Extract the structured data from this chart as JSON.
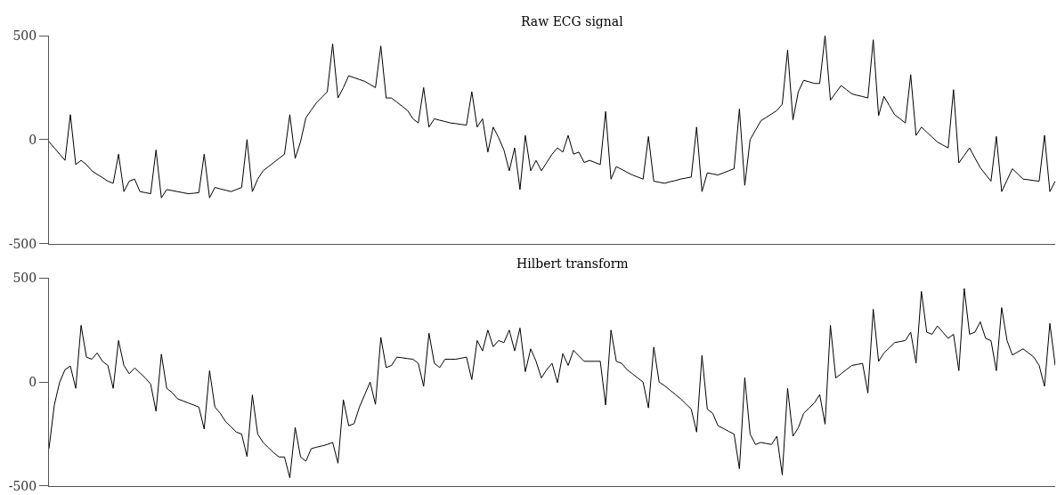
{
  "chart_data": [
    {
      "type": "line",
      "title": "Raw ECG signal",
      "categories": [
        null,
        null,
        null,
        null,
        null,
        null,
        null,
        null,
        null,
        null,
        null,
        null,
        null,
        null,
        null,
        null,
        null,
        null,
        null,
        null,
        null,
        null,
        null,
        null,
        null,
        null,
        null,
        null,
        null,
        null,
        null,
        null,
        null,
        null,
        null,
        null,
        null,
        null,
        null,
        null,
        null,
        null,
        null,
        null,
        null,
        null,
        null,
        null,
        null,
        null,
        null,
        null,
        null,
        null,
        null,
        null,
        null,
        null,
        null,
        null,
        null,
        null,
        null,
        null,
        null,
        null,
        null,
        null,
        null,
        null,
        null,
        null,
        null,
        null,
        null,
        null,
        null,
        null,
        null,
        null,
        null,
        null,
        null,
        null,
        null,
        null,
        null,
        null,
        null,
        null,
        null,
        null,
        null,
        null,
        null,
        null,
        null,
        null,
        null,
        null,
        null,
        null,
        null,
        null,
        null,
        null,
        null,
        null,
        null,
        null,
        null,
        null,
        null,
        null,
        null,
        null,
        null,
        null,
        null,
        null,
        null,
        null,
        null,
        null,
        null,
        null,
        null,
        null,
        null,
        null,
        null,
        null,
        null,
        null,
        null,
        null,
        null,
        null,
        null,
        null,
        null,
        null,
        null,
        null,
        null,
        null,
        null,
        null,
        null,
        null,
        null,
        null,
        null,
        null,
        null,
        null,
        null,
        null,
        null,
        null,
        null,
        null,
        null,
        null,
        null,
        null,
        null,
        null,
        null,
        null,
        null,
        null,
        null,
        null,
        null,
        null,
        null,
        null,
        null,
        null,
        null,
        null,
        null,
        null,
        null,
        null,
        null,
        null,
        null
      ],
      "ylim": [
        -500,
        500
      ],
      "yticks": [
        -500,
        0,
        500
      ],
      "tick_labels": "y",
      "series": [
        {
          "color": "#000000",
          "values": [
            -10,
            -40,
            -70,
            -100,
            120,
            -120,
            -100,
            -120,
            -150,
            -167,
            -183,
            -200,
            -210,
            -70,
            -250,
            -200,
            -190,
            -250,
            -255,
            -260,
            -50,
            -280,
            -240,
            -245,
            -250,
            -255,
            -260,
            -258,
            -255,
            -70,
            -280,
            -230,
            -237,
            -243,
            -250,
            -240,
            -230,
            0,
            -250,
            -190,
            -150,
            -130,
            -110,
            -90,
            -70,
            120,
            -90,
            -10,
            105,
            142,
            178,
            204,
            230,
            460,
            200,
            250,
            307,
            298,
            289,
            280,
            265,
            250,
            450,
            200,
            200,
            180,
            160,
            140,
            100,
            80,
            250,
            60,
            100,
            93,
            87,
            80,
            77,
            73,
            70,
            230,
            60,
            100,
            -60,
            60,
            10,
            -50,
            -150,
            -40,
            -240,
            20,
            -150,
            -100,
            -150,
            -110,
            -70,
            -40,
            -60,
            20,
            -70,
            -60,
            -110,
            -100,
            -110,
            -120,
            135,
            -190,
            -130,
            -143,
            -157,
            -170,
            -180,
            -190,
            15,
            -200,
            -205,
            -210,
            -203,
            -197,
            -190,
            -185,
            -180,
            60,
            -250,
            -160,
            -165,
            -170,
            -160,
            -150,
            -140,
            147,
            -220,
            0,
            45,
            90,
            107,
            123,
            140,
            170,
            430,
            95,
            230,
            285,
            278,
            270,
            270,
            500,
            190,
            225,
            260,
            240,
            220,
            213,
            207,
            200,
            480,
            115,
            208,
            164,
            120,
            100,
            80,
            312,
            20,
            60,
            36,
            12,
            -12,
            -26,
            -40,
            240,
            -112,
            -76,
            -40,
            -88,
            -135,
            -168,
            -200,
            15,
            -250,
            -195,
            -140,
            -165,
            -190,
            -193,
            -197,
            -200,
            20,
            -250,
            -200
          ]
        }
      ]
    },
    {
      "type": "line",
      "title": "Hilbert transform",
      "categories": [
        null,
        null,
        null,
        null,
        null,
        null,
        null,
        null,
        null,
        null,
        null,
        null,
        null,
        null,
        null,
        null,
        null,
        null,
        null,
        null,
        null,
        null,
        null,
        null,
        null,
        null,
        null,
        null,
        null,
        null,
        null,
        null,
        null,
        null,
        null,
        null,
        null,
        null,
        null,
        null,
        null,
        null,
        null,
        null,
        null,
        null,
        null,
        null,
        null,
        null,
        null,
        null,
        null,
        null,
        null,
        null,
        null,
        null,
        null,
        null,
        null,
        null,
        null,
        null,
        null,
        null,
        null,
        null,
        null,
        null,
        null,
        null,
        null,
        null,
        null,
        null,
        null,
        null,
        null,
        null,
        null,
        null,
        null,
        null,
        null,
        null,
        null,
        null,
        null,
        null,
        null,
        null,
        null,
        null,
        null,
        null,
        null,
        null,
        null,
        null,
        null,
        null,
        null,
        null,
        null,
        null,
        null,
        null,
        null,
        null,
        null,
        null,
        null,
        null,
        null,
        null,
        null,
        null,
        null,
        null,
        null,
        null,
        null,
        null,
        null,
        null,
        null,
        null,
        null,
        null,
        null,
        null,
        null,
        null,
        null,
        null,
        null,
        null,
        null,
        null,
        null,
        null,
        null,
        null,
        null,
        null,
        null,
        null,
        null,
        null,
        null,
        null,
        null,
        null,
        null,
        null,
        null,
        null,
        null,
        null,
        null,
        null,
        null,
        null,
        null,
        null,
        null,
        null,
        null,
        null,
        null,
        null,
        null,
        null,
        null,
        null,
        null,
        null,
        null,
        null,
        null,
        null,
        null,
        null,
        null,
        null,
        null,
        null,
        null
      ],
      "ylim": [
        -500,
        500
      ],
      "yticks": [
        -500,
        0,
        500
      ],
      "tick_labels": "y",
      "series": [
        {
          "color": "#000000",
          "values": [
            -320,
            -110,
            0,
            60,
            77,
            -30,
            273,
            120,
            110,
            140,
            100,
            80,
            -30,
            200,
            80,
            40,
            68,
            44,
            20,
            -10,
            -140,
            134,
            -30,
            -50,
            -80,
            -90,
            -100,
            -110,
            -120,
            -226,
            55,
            -120,
            -150,
            -190,
            -215,
            -240,
            -250,
            -358,
            -62,
            -250,
            -290,
            -315,
            -340,
            -360,
            -360,
            -460,
            -218,
            -360,
            -380,
            -320,
            -313,
            -307,
            -300,
            -290,
            -390,
            -85,
            -210,
            -200,
            -120,
            -60,
            0,
            -107,
            215,
            70,
            80,
            120,
            117,
            113,
            110,
            90,
            -20,
            235,
            90,
            70,
            110,
            110,
            110,
            115,
            120,
            12,
            200,
            150,
            250,
            170,
            200,
            190,
            250,
            150,
            260,
            50,
            160,
            100,
            20,
            60,
            90,
            -3,
            137,
            80,
            153,
            126,
            100,
            100,
            100,
            100,
            -110,
            250,
            100,
            90,
            60,
            40,
            20,
            0,
            -124,
            168,
            0,
            -17,
            -38,
            -59,
            -80,
            -105,
            -130,
            -240,
            128,
            -130,
            -150,
            -210,
            -223,
            -237,
            -250,
            -417,
            21,
            -250,
            -300,
            -290,
            -295,
            -300,
            -260,
            -446,
            -30,
            -260,
            -220,
            -150,
            -125,
            -100,
            -60,
            -202,
            273,
            20,
            40,
            60,
            80,
            85,
            90,
            -52,
            350,
            100,
            140,
            165,
            190,
            195,
            200,
            240,
            92,
            436,
            240,
            230,
            270,
            240,
            210,
            230,
            55,
            450,
            230,
            240,
            290,
            210,
            200,
            55,
            358,
            200,
            130,
            145,
            160,
            140,
            120,
            80,
            -20,
            282,
            80
          ]
        }
      ]
    }
  ]
}
